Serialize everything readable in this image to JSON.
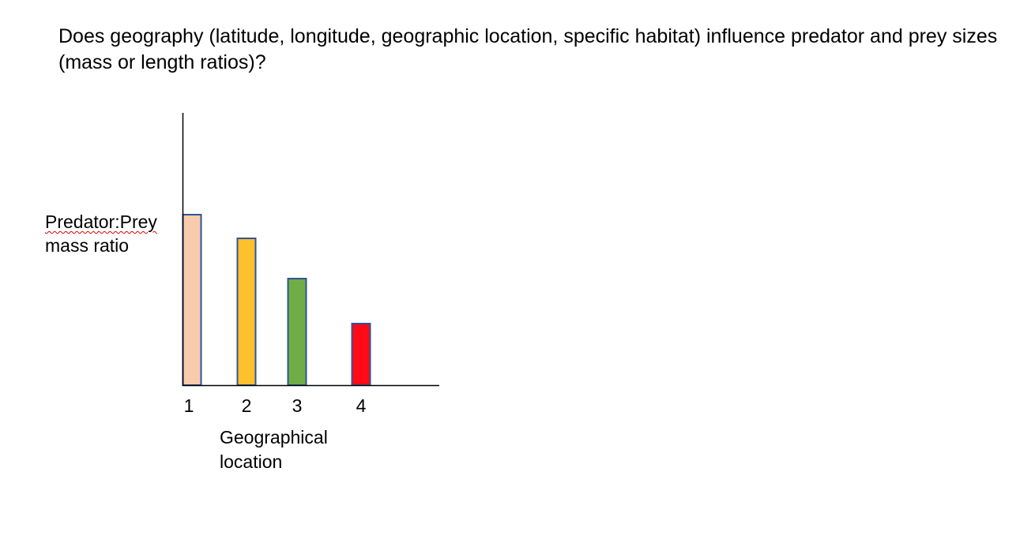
{
  "question": "Does geography (latitude, longitude, geographic location, specific habitat) influence predator and prey sizes (mass or length ratios)?",
  "chart_data": {
    "type": "bar",
    "categories": [
      "1",
      "2",
      "3",
      "4"
    ],
    "values": [
      7.2,
      6.2,
      4.5,
      2.6
    ],
    "colors": [
      "#F8CBAD",
      "#FFC02E",
      "#70AD47",
      "#FF0A16"
    ],
    "bar_outline_color": "#2F5597",
    "ylabel_line1": "Predator:Prey",
    "ylabel_line2": "mass ratio",
    "xlabel_line1": "Geographical",
    "xlabel_line2": "location",
    "ylim": [
      0,
      11.5
    ],
    "grid": false,
    "y_ticks_shown": false
  }
}
